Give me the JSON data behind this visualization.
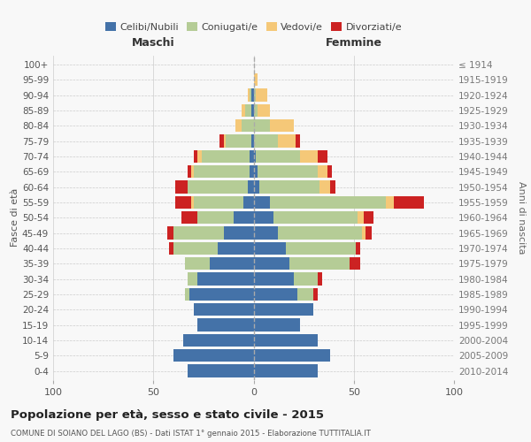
{
  "age_groups": [
    "0-4",
    "5-9",
    "10-14",
    "15-19",
    "20-24",
    "25-29",
    "30-34",
    "35-39",
    "40-44",
    "45-49",
    "50-54",
    "55-59",
    "60-64",
    "65-69",
    "70-74",
    "75-79",
    "80-84",
    "85-89",
    "90-94",
    "95-99",
    "100+"
  ],
  "birth_years": [
    "2010-2014",
    "2005-2009",
    "2000-2004",
    "1995-1999",
    "1990-1994",
    "1985-1989",
    "1980-1984",
    "1975-1979",
    "1970-1974",
    "1965-1969",
    "1960-1964",
    "1955-1959",
    "1950-1954",
    "1945-1949",
    "1940-1944",
    "1935-1939",
    "1930-1934",
    "1925-1929",
    "1920-1924",
    "1915-1919",
    "≤ 1914"
  ],
  "maschi": {
    "celibi": [
      33,
      40,
      35,
      28,
      30,
      32,
      28,
      22,
      18,
      15,
      10,
      5,
      3,
      2,
      2,
      1,
      0,
      1,
      1,
      0,
      0
    ],
    "coniugati": [
      0,
      0,
      0,
      0,
      0,
      2,
      5,
      12,
      22,
      25,
      18,
      25,
      30,
      28,
      24,
      13,
      6,
      3,
      1,
      0,
      0
    ],
    "vedovi": [
      0,
      0,
      0,
      0,
      0,
      0,
      0,
      0,
      0,
      0,
      0,
      1,
      0,
      1,
      2,
      1,
      3,
      2,
      1,
      0,
      0
    ],
    "divorziati": [
      0,
      0,
      0,
      0,
      0,
      0,
      0,
      0,
      2,
      3,
      8,
      8,
      6,
      2,
      2,
      2,
      0,
      0,
      0,
      0,
      0
    ]
  },
  "femmine": {
    "nubili": [
      32,
      38,
      32,
      23,
      30,
      22,
      20,
      18,
      16,
      12,
      10,
      8,
      3,
      2,
      1,
      0,
      0,
      0,
      0,
      0,
      0
    ],
    "coniugate": [
      0,
      0,
      0,
      0,
      0,
      8,
      12,
      30,
      35,
      42,
      42,
      58,
      30,
      30,
      22,
      12,
      8,
      2,
      1,
      0,
      0
    ],
    "vedove": [
      0,
      0,
      0,
      0,
      0,
      0,
      0,
      0,
      0,
      2,
      3,
      4,
      5,
      5,
      9,
      9,
      12,
      6,
      6,
      2,
      0
    ],
    "divorziate": [
      0,
      0,
      0,
      0,
      0,
      2,
      2,
      5,
      2,
      3,
      5,
      15,
      3,
      2,
      5,
      2,
      0,
      0,
      0,
      0,
      0
    ]
  },
  "colors": {
    "celibi_nubili": "#4472a8",
    "coniugati_e": "#b5cc96",
    "vedovi_e": "#f5c878",
    "divorziati_e": "#cc2222"
  },
  "xlim": 100,
  "title": "Popolazione per età, sesso e stato civile - 2015",
  "subtitle": "COMUNE DI SOIANO DEL LAGO (BS) - Dati ISTAT 1° gennaio 2015 - Elaborazione TUTTITALIA.IT",
  "ylabel_left": "Fasce di età",
  "ylabel_right": "Anni di nascita",
  "xlabel_maschi": "Maschi",
  "xlabel_femmine": "Femmine",
  "bg_color": "#f8f8f8",
  "grid_color": "#cccccc"
}
